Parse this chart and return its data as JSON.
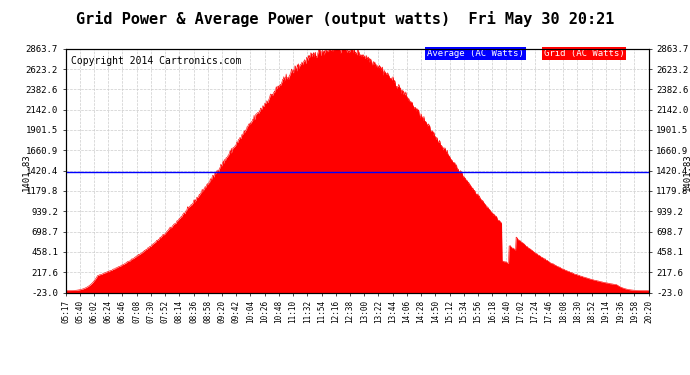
{
  "title": "Grid Power & Average Power (output watts)  Fri May 30 20:21",
  "copyright": "Copyright 2014 Cartronics.com",
  "y_min": -23.0,
  "y_max": 2863.7,
  "y_ticks": [
    2863.7,
    2623.2,
    2382.6,
    2142.0,
    1901.5,
    1660.9,
    1420.4,
    1179.8,
    939.2,
    698.7,
    458.1,
    217.6,
    -23.0
  ],
  "average_line_y": 1401.83,
  "average_label": "1401.83",
  "x_labels": [
    "05:17",
    "05:40",
    "06:02",
    "06:24",
    "06:46",
    "07:08",
    "07:30",
    "07:52",
    "08:14",
    "08:36",
    "08:58",
    "09:20",
    "09:42",
    "10:04",
    "10:26",
    "10:48",
    "11:10",
    "11:32",
    "11:54",
    "12:16",
    "12:38",
    "13:00",
    "13:22",
    "13:44",
    "14:06",
    "14:28",
    "14:50",
    "15:12",
    "15:34",
    "15:56",
    "16:18",
    "16:40",
    "17:02",
    "17:24",
    "17:46",
    "18:08",
    "18:30",
    "18:52",
    "19:14",
    "19:36",
    "19:58",
    "20:20"
  ],
  "fill_color": "#FF0000",
  "line_color": "#FF0000",
  "avg_line_color": "#0000FF",
  "background_color": "#FFFFFF",
  "grid_color": "#CCCCCC",
  "legend_avg_bg": "#0000FF",
  "legend_grid_bg": "#FF0000",
  "legend_text_color": "#FFFFFF",
  "title_fontsize": 11,
  "copyright_fontsize": 7
}
